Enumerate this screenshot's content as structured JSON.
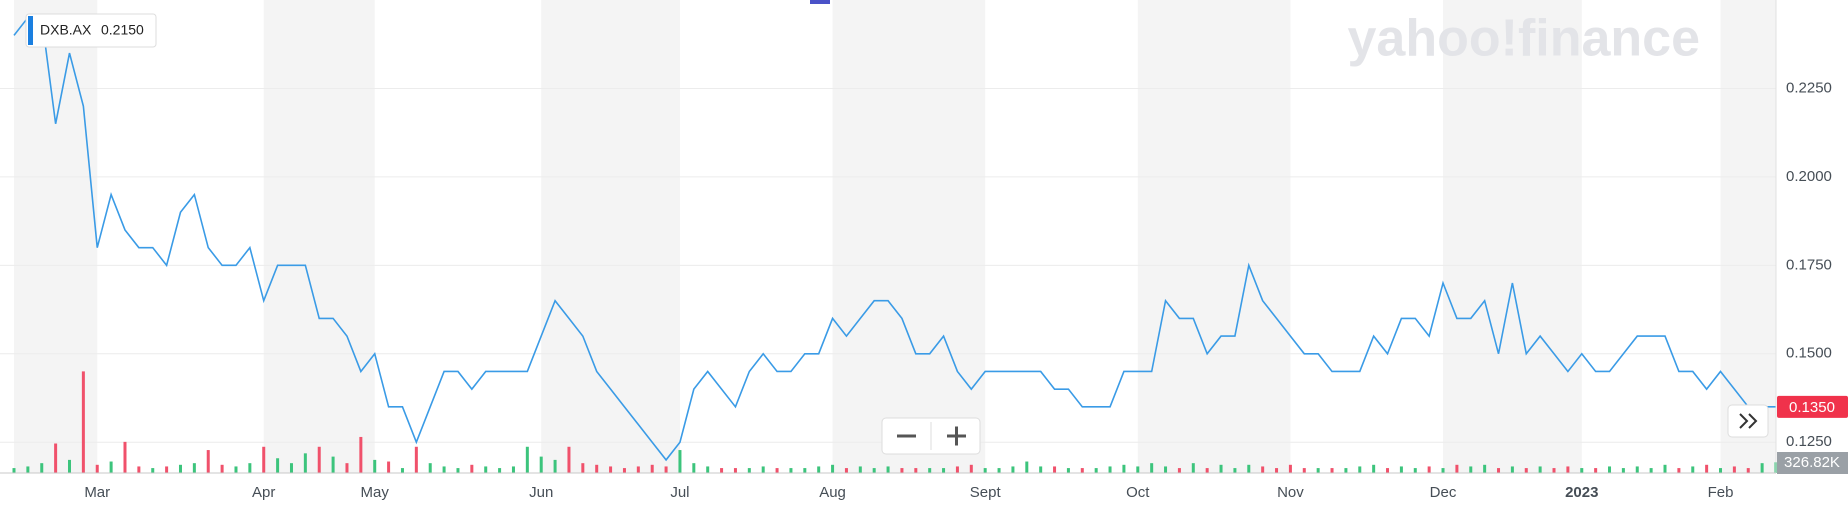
{
  "chart_data": {
    "type": "line",
    "watermark": "yahoo!finance",
    "categories": [
      null,
      null,
      null,
      null,
      null,
      null,
      "Mar",
      null,
      null,
      null,
      null,
      null,
      null,
      null,
      null,
      null,
      null,
      null,
      "Apr",
      null,
      null,
      null,
      null,
      null,
      null,
      null,
      "May",
      null,
      null,
      null,
      null,
      null,
      null,
      null,
      null,
      null,
      null,
      null,
      "Jun",
      null,
      null,
      null,
      null,
      null,
      null,
      null,
      null,
      null,
      "Jul",
      null,
      null,
      null,
      null,
      null,
      null,
      null,
      null,
      null,
      null,
      "Aug",
      null,
      null,
      null,
      null,
      null,
      null,
      null,
      null,
      null,
      null,
      "Sept",
      null,
      null,
      null,
      null,
      null,
      null,
      null,
      null,
      null,
      null,
      "Oct",
      null,
      null,
      null,
      null,
      null,
      null,
      null,
      null,
      null,
      null,
      "Nov",
      null,
      null,
      null,
      null,
      null,
      null,
      null,
      null,
      null,
      null,
      "Dec",
      null,
      null,
      null,
      null,
      null,
      null,
      null,
      null,
      null,
      "2023",
      null,
      null,
      null,
      null,
      null,
      null,
      null,
      null,
      null,
      "Feb",
      null,
      null,
      null,
      null
    ],
    "series": [
      {
        "name": "DXB.AX",
        "color": "#3a9be6",
        "values": [
          0.24,
          0.245,
          0.245,
          0.215,
          0.235,
          0.22,
          0.18,
          0.195,
          0.185,
          0.18,
          0.18,
          0.175,
          0.19,
          0.195,
          0.18,
          0.175,
          0.175,
          0.18,
          0.165,
          0.175,
          0.175,
          0.175,
          0.16,
          0.16,
          0.155,
          0.145,
          0.15,
          0.135,
          0.135,
          0.125,
          0.135,
          0.145,
          0.145,
          0.14,
          0.145,
          0.145,
          0.145,
          0.145,
          0.155,
          0.165,
          0.16,
          0.155,
          0.145,
          0.14,
          0.135,
          0.13,
          0.125,
          0.12,
          0.125,
          0.14,
          0.145,
          0.14,
          0.135,
          0.145,
          0.15,
          0.145,
          0.145,
          0.15,
          0.15,
          0.16,
          0.155,
          0.16,
          0.165,
          0.165,
          0.16,
          0.15,
          0.15,
          0.155,
          0.145,
          0.14,
          0.145,
          0.145,
          0.145,
          0.145,
          0.145,
          0.14,
          0.14,
          0.135,
          0.135,
          0.135,
          0.145,
          0.145,
          0.145,
          0.165,
          0.16,
          0.16,
          0.15,
          0.155,
          0.155,
          0.175,
          0.165,
          0.16,
          0.155,
          0.15,
          0.15,
          0.145,
          0.145,
          0.145,
          0.155,
          0.15,
          0.16,
          0.16,
          0.155,
          0.17,
          0.16,
          0.16,
          0.165,
          0.15,
          0.17,
          0.15,
          0.155,
          0.15,
          0.145,
          0.15,
          0.145,
          0.145,
          0.15,
          0.155,
          0.155,
          0.155,
          0.145,
          0.145,
          0.14,
          0.145,
          0.14,
          0.135,
          0.135,
          0.135
        ]
      }
    ],
    "tooltip_value": {
      "value": 0.215,
      "label": "0.2150"
    },
    "last_price": {
      "value": 0.135,
      "label": "0.1350",
      "color": "#f0324b"
    },
    "ylim": [
      0.1163,
      0.25
    ],
    "yticks": [
      {
        "value": 0.125,
        "label": "0.1250"
      },
      {
        "value": 0.15,
        "label": "0.1500"
      },
      {
        "value": 0.175,
        "label": "0.1750"
      },
      {
        "value": 0.2,
        "label": "0.2000"
      },
      {
        "value": 0.225,
        "label": "0.2250"
      }
    ],
    "grid": true,
    "volume": {
      "up_color": "#3cc47c",
      "down_color": "#f0516b",
      "ylim": [
        0,
        3600
      ],
      "last_label": {
        "value": 326.82,
        "label": "326.82K"
      },
      "values": [
        150,
        200,
        300,
        900,
        400,
        3100,
        250,
        350,
        950,
        200,
        150,
        200,
        250,
        300,
        700,
        250,
        200,
        300,
        800,
        450,
        300,
        600,
        800,
        500,
        300,
        1100,
        400,
        350,
        150,
        800,
        300,
        200,
        150,
        250,
        200,
        150,
        200,
        800,
        500,
        400,
        800,
        300,
        250,
        200,
        150,
        200,
        250,
        200,
        700,
        300,
        200,
        150,
        150,
        150,
        200,
        150,
        150,
        150,
        200,
        250,
        150,
        200,
        150,
        200,
        150,
        150,
        150,
        150,
        200,
        250,
        150,
        150,
        200,
        350,
        200,
        200,
        150,
        150,
        150,
        200,
        250,
        200,
        300,
        200,
        150,
        300,
        150,
        250,
        150,
        250,
        200,
        150,
        250,
        150,
        150,
        150,
        150,
        200,
        250,
        150,
        200,
        150,
        200,
        150,
        250,
        200,
        250,
        150,
        200,
        150,
        200,
        150,
        200,
        150,
        150,
        200,
        150,
        200,
        150,
        250,
        150,
        200,
        250,
        150,
        200,
        150,
        300,
        326.82
      ]
    }
  }
}
